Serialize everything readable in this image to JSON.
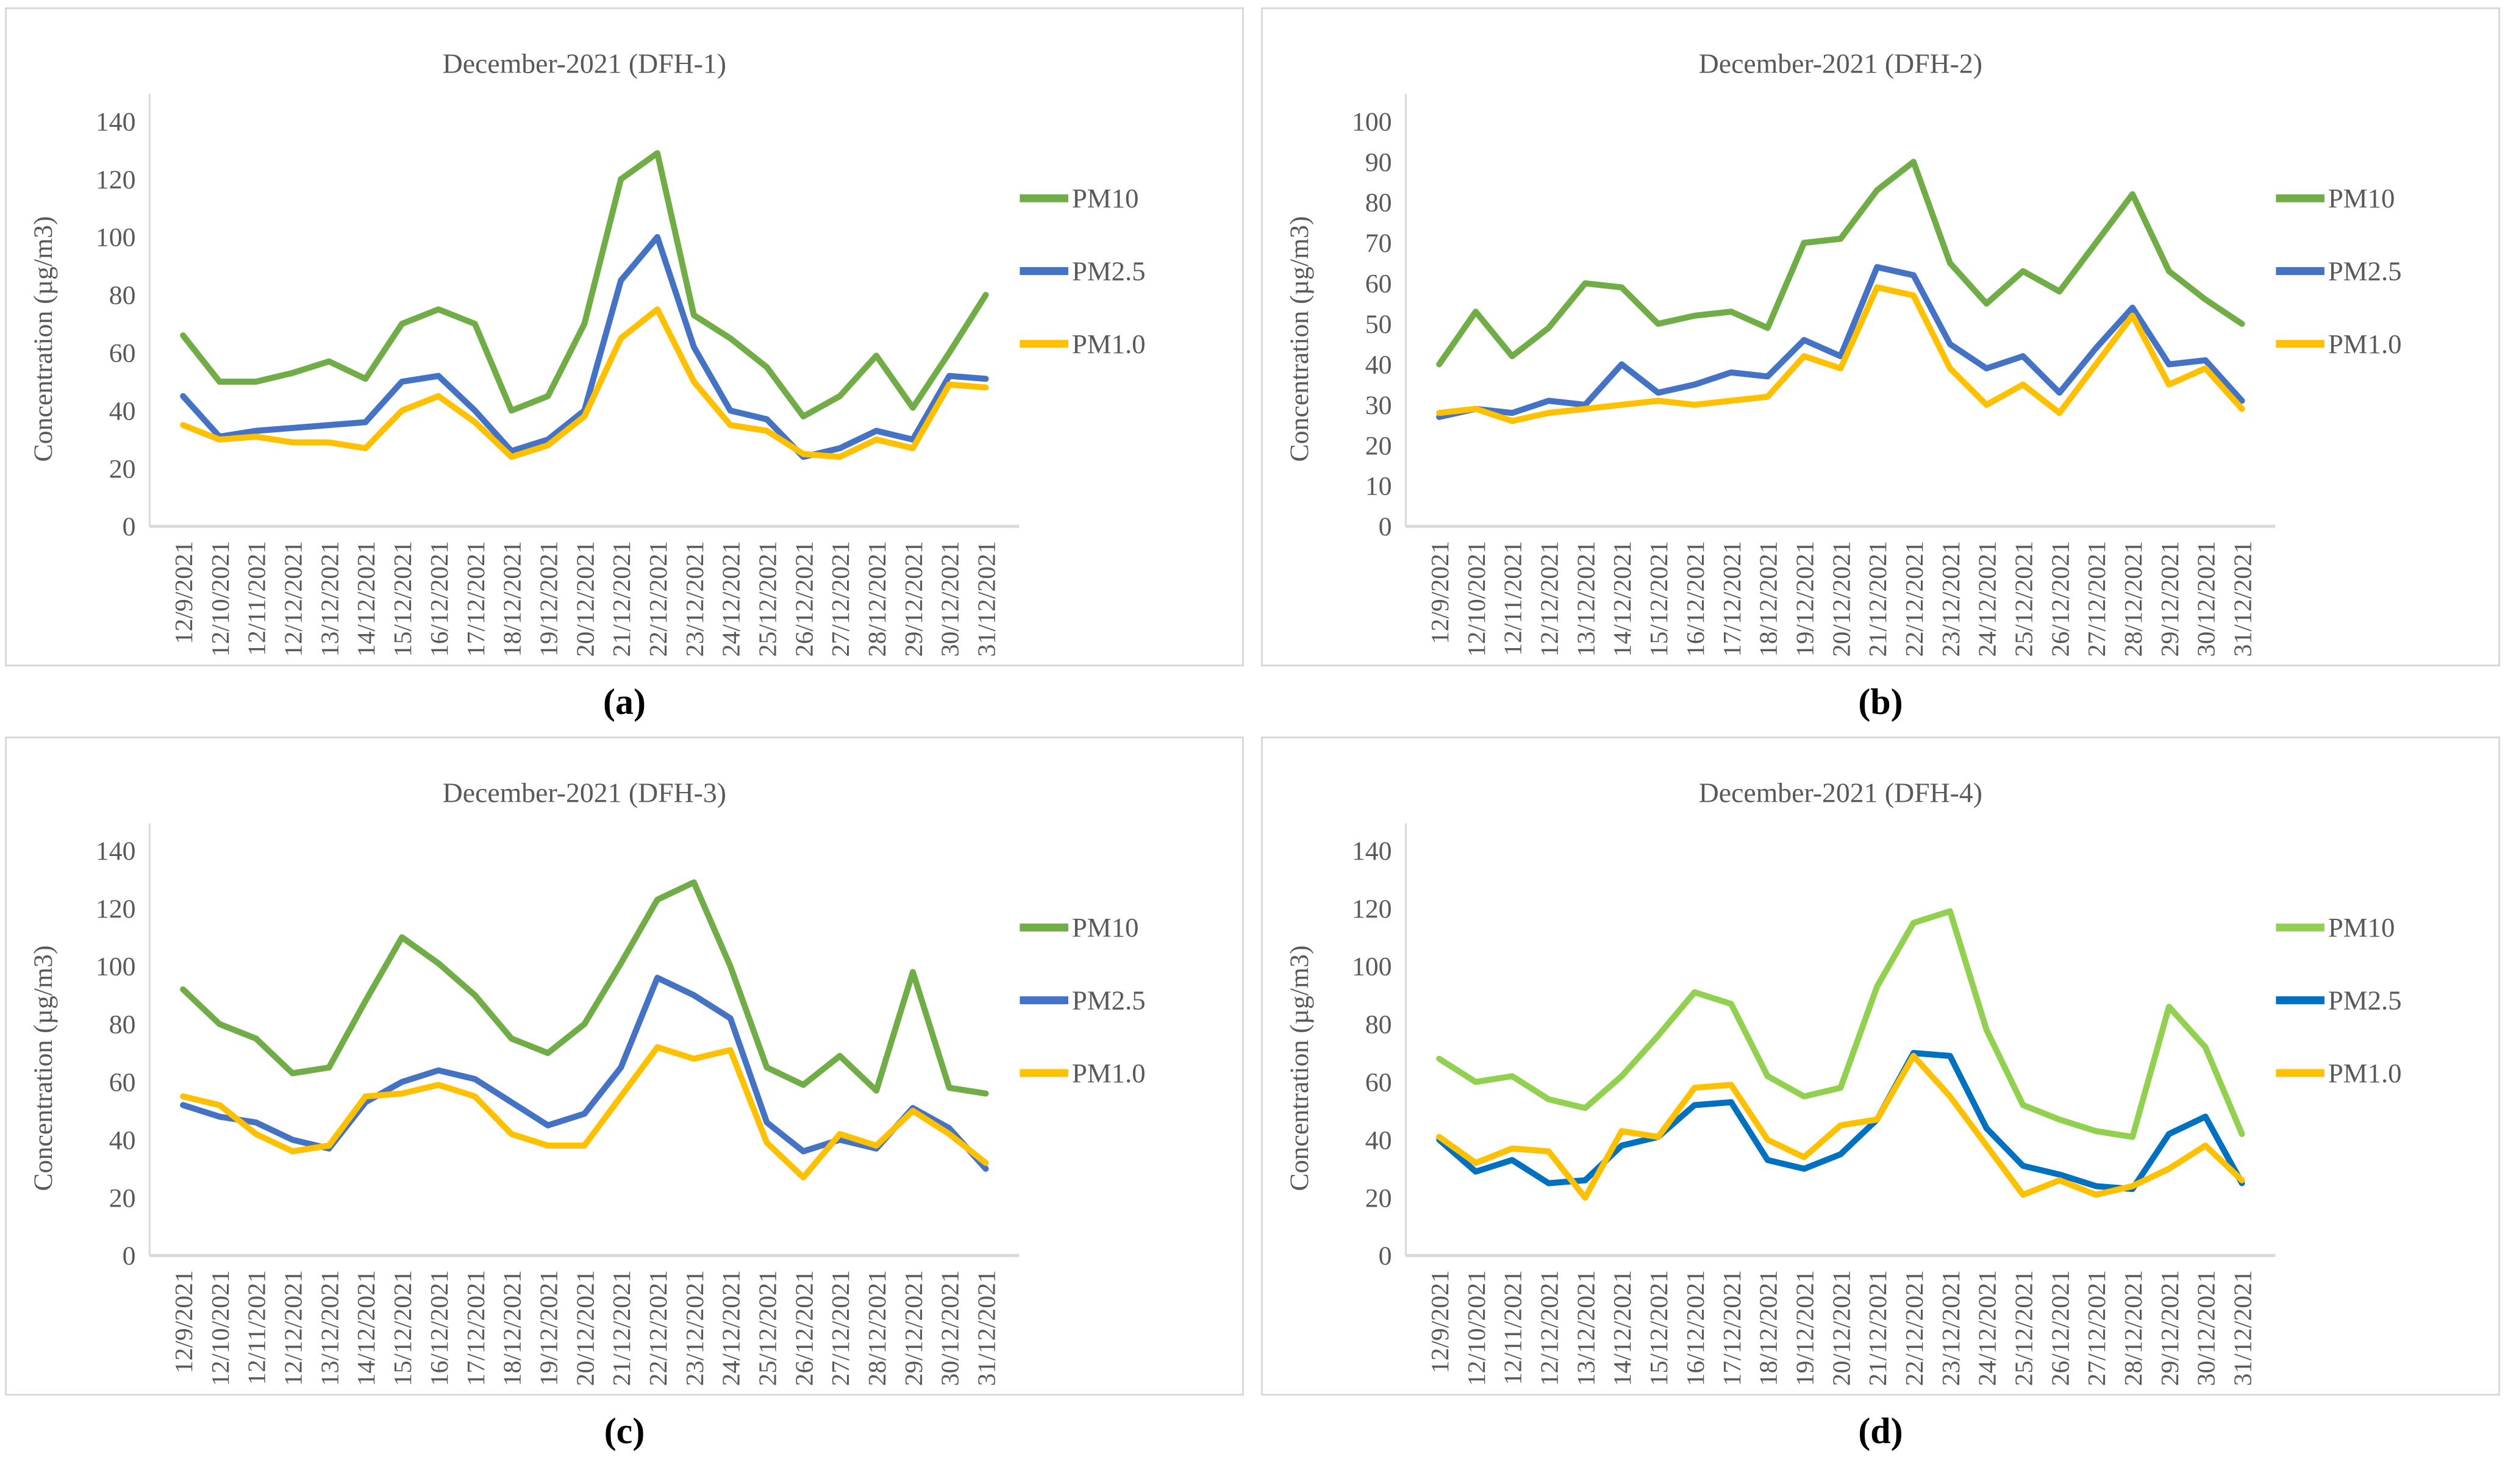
{
  "chart_data": [
    {
      "id": "a",
      "type": "line",
      "title": "December-2021 (DFH-1)",
      "caption": "(a)",
      "ylabel": "Concentration (µg/m3)",
      "xlabel": "",
      "ylim": [
        0,
        140
      ],
      "yticks": [
        0,
        20,
        40,
        60,
        80,
        100,
        120,
        140
      ],
      "grid": false,
      "legend_position": "right",
      "categories": [
        "12/9/2021",
        "12/10/2021",
        "12/11/2021",
        "12/12/2021",
        "13/12/2021",
        "14/12/2021",
        "15/12/2021",
        "16/12/2021",
        "17/12/2021",
        "18/12/2021",
        "19/12/2021",
        "20/12/2021",
        "21/12/2021",
        "22/12/2021",
        "23/12/2021",
        "24/12/2021",
        "25/12/2021",
        "26/12/2021",
        "27/12/2021",
        "28/12/2021",
        "29/12/2021",
        "30/12/2021",
        "31/12/2021"
      ],
      "series": [
        {
          "name": "PM10",
          "color": "#70AD47",
          "values": [
            66,
            50,
            50,
            53,
            57,
            51,
            70,
            75,
            70,
            40,
            45,
            70,
            120,
            129,
            73,
            65,
            55,
            38,
            45,
            59,
            41,
            60,
            80
          ]
        },
        {
          "name": "PM2.5",
          "color": "#4472C4",
          "values": [
            45,
            31,
            33,
            34,
            35,
            36,
            50,
            52,
            40,
            26,
            30,
            40,
            85,
            100,
            62,
            40,
            37,
            24,
            27,
            33,
            30,
            52,
            51
          ]
        },
        {
          "name": "PM1.0",
          "color": "#FFC000",
          "values": [
            35,
            30,
            31,
            29,
            29,
            27,
            40,
            45,
            36,
            24,
            28,
            38,
            65,
            75,
            50,
            35,
            33,
            25,
            24,
            30,
            27,
            49,
            48
          ]
        }
      ]
    },
    {
      "id": "b",
      "type": "line",
      "title": "December-2021 (DFH-2)",
      "caption": "(b)",
      "ylabel": "Concentration (µg/m3)",
      "xlabel": "",
      "ylim": [
        0,
        100
      ],
      "yticks": [
        0,
        10,
        20,
        30,
        40,
        50,
        60,
        70,
        80,
        90,
        100
      ],
      "grid": false,
      "legend_position": "right",
      "categories": [
        "12/9/2021",
        "12/10/2021",
        "12/11/2021",
        "12/12/2021",
        "13/12/2021",
        "14/12/2021",
        "15/12/2021",
        "16/12/2021",
        "17/12/2021",
        "18/12/2021",
        "19/12/2021",
        "20/12/2021",
        "21/12/2021",
        "22/12/2021",
        "23/12/2021",
        "24/12/2021",
        "25/12/2021",
        "26/12/2021",
        "27/12/2021",
        "28/12/2021",
        "29/12/2021",
        "30/12/2021",
        "31/12/2021"
      ],
      "series": [
        {
          "name": "PM10",
          "color": "#70AD47",
          "values": [
            40,
            53,
            42,
            49,
            60,
            59,
            50,
            52,
            53,
            49,
            70,
            71,
            83,
            90,
            65,
            55,
            63,
            58,
            70,
            82,
            63,
            56,
            50
          ]
        },
        {
          "name": "PM2.5",
          "color": "#4472C4",
          "values": [
            27,
            29,
            28,
            31,
            30,
            40,
            33,
            35,
            38,
            37,
            46,
            42,
            64,
            62,
            45,
            39,
            42,
            33,
            44,
            54,
            40,
            41,
            31
          ]
        },
        {
          "name": "PM1.0",
          "color": "#FFC000",
          "values": [
            28,
            29,
            26,
            28,
            29,
            30,
            31,
            30,
            31,
            32,
            42,
            39,
            59,
            57,
            39,
            30,
            35,
            28,
            40,
            52,
            35,
            39,
            29
          ]
        }
      ]
    },
    {
      "id": "c",
      "type": "line",
      "title": "December-2021 (DFH-3)",
      "caption": "(c)",
      "ylabel": "Concentration (µg/m3)",
      "xlabel": "",
      "ylim": [
        0,
        140
      ],
      "yticks": [
        0,
        20,
        40,
        60,
        80,
        100,
        120,
        140
      ],
      "grid": false,
      "legend_position": "right",
      "categories": [
        "12/9/2021",
        "12/10/2021",
        "12/11/2021",
        "12/12/2021",
        "13/12/2021",
        "14/12/2021",
        "15/12/2021",
        "16/12/2021",
        "17/12/2021",
        "18/12/2021",
        "19/12/2021",
        "20/12/2021",
        "21/12/2021",
        "22/12/2021",
        "23/12/2021",
        "24/12/2021",
        "25/12/2021",
        "26/12/2021",
        "27/12/2021",
        "28/12/2021",
        "29/12/2021",
        "30/12/2021",
        "31/12/2021"
      ],
      "series": [
        {
          "name": "PM10",
          "color": "#70AD47",
          "values": [
            92,
            80,
            75,
            63,
            65,
            88,
            110,
            101,
            90,
            75,
            70,
            80,
            101,
            123,
            129,
            100,
            65,
            59,
            69,
            57,
            98,
            58,
            56
          ]
        },
        {
          "name": "PM2.5",
          "color": "#4472C4",
          "values": [
            52,
            48,
            46,
            40,
            37,
            53,
            60,
            64,
            61,
            53,
            45,
            49,
            65,
            96,
            90,
            82,
            46,
            36,
            40,
            37,
            51,
            44,
            30
          ]
        },
        {
          "name": "PM1.0",
          "color": "#FFC000",
          "values": [
            55,
            52,
            42,
            36,
            38,
            55,
            56,
            59,
            55,
            42,
            38,
            38,
            55,
            72,
            68,
            71,
            39,
            27,
            42,
            38,
            50,
            42,
            32
          ]
        }
      ]
    },
    {
      "id": "d",
      "type": "line",
      "title": "December-2021 (DFH-4)",
      "caption": "(d)",
      "ylabel": "Concentration (µg/m3)",
      "xlabel": "",
      "ylim": [
        0,
        140
      ],
      "yticks": [
        0,
        20,
        40,
        60,
        80,
        100,
        120,
        140
      ],
      "grid": false,
      "legend_position": "right",
      "categories": [
        "12/9/2021",
        "12/10/2021",
        "12/11/2021",
        "12/12/2021",
        "13/12/2021",
        "14/12/2021",
        "15/12/2021",
        "16/12/2021",
        "17/12/2021",
        "18/12/2021",
        "19/12/2021",
        "20/12/2021",
        "21/12/2021",
        "22/12/2021",
        "23/12/2021",
        "24/12/2021",
        "25/12/2021",
        "26/12/2021",
        "27/12/2021",
        "28/12/2021",
        "29/12/2021",
        "30/12/2021",
        "31/12/2021"
      ],
      "series": [
        {
          "name": "PM10",
          "color": "#92D050",
          "values": [
            68,
            60,
            62,
            54,
            51,
            62,
            76,
            91,
            87,
            62,
            55,
            58,
            93,
            115,
            119,
            78,
            52,
            47,
            43,
            41,
            86,
            72,
            42
          ]
        },
        {
          "name": "PM2.5",
          "color": "#0070C0",
          "values": [
            40,
            29,
            33,
            25,
            26,
            38,
            41,
            52,
            53,
            33,
            30,
            35,
            47,
            70,
            69,
            44,
            31,
            28,
            24,
            23,
            42,
            48,
            25
          ]
        },
        {
          "name": "PM1.0",
          "color": "#FFC000",
          "values": [
            41,
            32,
            37,
            36,
            20,
            43,
            41,
            58,
            59,
            40,
            34,
            45,
            47,
            69,
            55,
            38,
            21,
            26,
            21,
            24,
            30,
            38,
            26
          ]
        }
      ]
    }
  ],
  "style": {
    "text_color": "#595959",
    "axis_color": "#d9d9d9",
    "panel_border_color": "#d9d9d9",
    "background": "#ffffff"
  }
}
